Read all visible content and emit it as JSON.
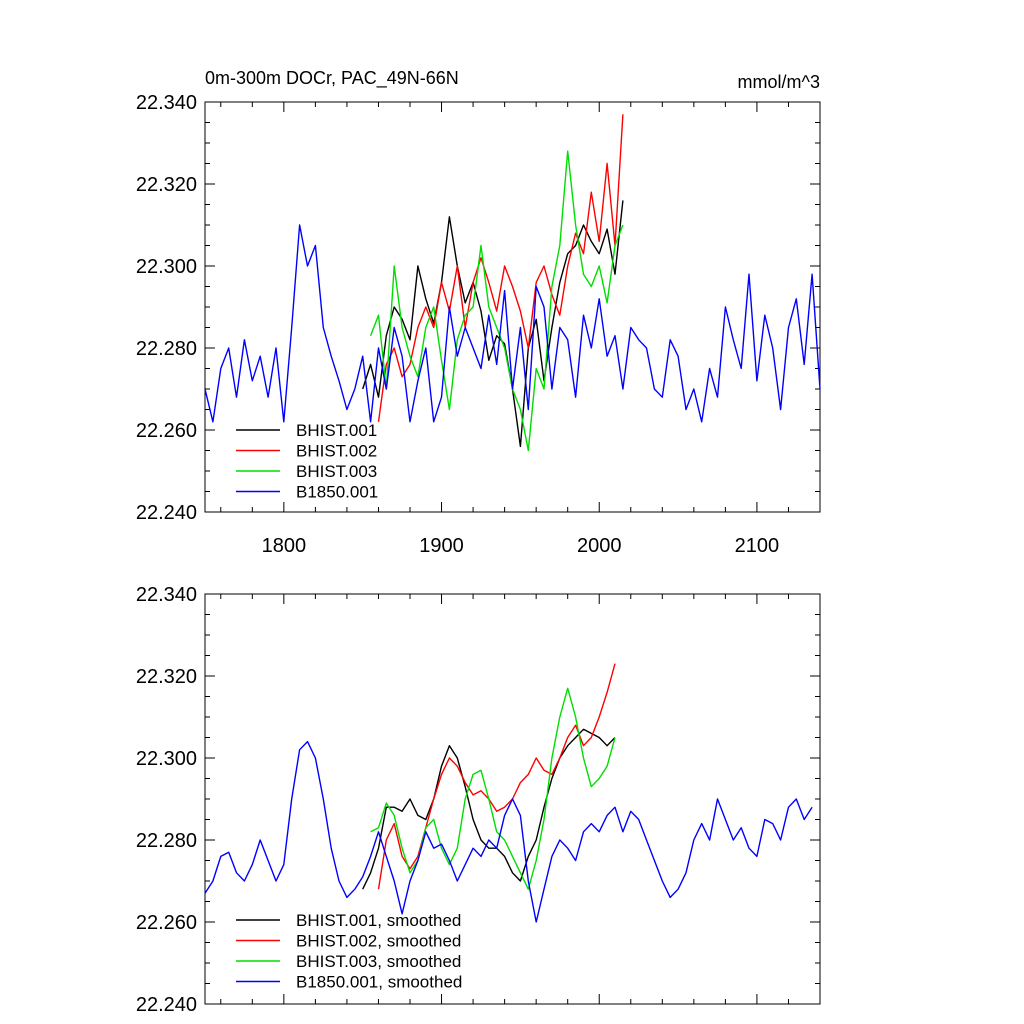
{
  "chart_data": [
    {
      "type": "line",
      "title": "0m-300m DOCr, PAC_49N-66N",
      "units": "mmol/m^3",
      "xlim": [
        1750,
        2140
      ],
      "ylim": [
        22.24,
        22.34
      ],
      "yticks": [
        "22.240",
        "22.260",
        "22.280",
        "22.300",
        "22.320",
        "22.340"
      ],
      "xticks": [
        "1800",
        "1900",
        "2000",
        "2100"
      ],
      "legend_position": "bottom-left",
      "series": [
        {
          "name": "BHIST.001",
          "color": "#000000",
          "x": [
            1850,
            1855,
            1860,
            1865,
            1870,
            1875,
            1880,
            1885,
            1890,
            1895,
            1900,
            1905,
            1910,
            1915,
            1920,
            1925,
            1930,
            1935,
            1940,
            1945,
            1950,
            1955,
            1960,
            1965,
            1970,
            1975,
            1980,
            1985,
            1990,
            1995,
            2000,
            2005,
            2010,
            2015
          ],
          "y": [
            22.27,
            22.276,
            22.268,
            22.283,
            22.29,
            22.287,
            22.282,
            22.3,
            22.292,
            22.286,
            22.296,
            22.312,
            22.3,
            22.291,
            22.296,
            22.289,
            22.277,
            22.283,
            22.281,
            22.27,
            22.256,
            22.28,
            22.287,
            22.272,
            22.285,
            22.296,
            22.303,
            22.305,
            22.31,
            22.306,
            22.303,
            22.309,
            22.298,
            22.316
          ]
        },
        {
          "name": "BHIST.002",
          "color": "#ff0000",
          "x": [
            1860,
            1865,
            1870,
            1875,
            1880,
            1885,
            1890,
            1895,
            1900,
            1905,
            1910,
            1915,
            1920,
            1925,
            1930,
            1935,
            1940,
            1945,
            1950,
            1955,
            1960,
            1965,
            1970,
            1975,
            1980,
            1985,
            1990,
            1995,
            2000,
            2005,
            2010,
            2015
          ],
          "y": [
            22.262,
            22.276,
            22.28,
            22.273,
            22.276,
            22.285,
            22.29,
            22.285,
            22.296,
            22.289,
            22.3,
            22.285,
            22.296,
            22.302,
            22.296,
            22.289,
            22.3,
            22.295,
            22.289,
            22.28,
            22.296,
            22.3,
            22.293,
            22.288,
            22.3,
            22.308,
            22.303,
            22.318,
            22.306,
            22.325,
            22.305,
            22.337
          ]
        },
        {
          "name": "BHIST.003",
          "color": "#00dd00",
          "x": [
            1855,
            1860,
            1865,
            1870,
            1875,
            1880,
            1885,
            1890,
            1895,
            1900,
            1905,
            1910,
            1915,
            1920,
            1925,
            1930,
            1935,
            1940,
            1945,
            1950,
            1955,
            1960,
            1965,
            1970,
            1975,
            1980,
            1985,
            1990,
            1995,
            2000,
            2005,
            2010,
            2015
          ],
          "y": [
            22.283,
            22.288,
            22.27,
            22.3,
            22.285,
            22.278,
            22.273,
            22.285,
            22.29,
            22.277,
            22.265,
            22.282,
            22.288,
            22.29,
            22.305,
            22.29,
            22.285,
            22.28,
            22.27,
            22.265,
            22.255,
            22.275,
            22.27,
            22.295,
            22.305,
            22.328,
            22.31,
            22.298,
            22.295,
            22.3,
            22.291,
            22.305,
            22.31
          ]
        },
        {
          "name": "B1850.001",
          "color": "#0000ff",
          "x": [
            1750,
            1755,
            1760,
            1765,
            1770,
            1775,
            1780,
            1785,
            1790,
            1795,
            1800,
            1805,
            1810,
            1815,
            1820,
            1825,
            1830,
            1835,
            1840,
            1845,
            1850,
            1855,
            1860,
            1865,
            1870,
            1875,
            1880,
            1885,
            1890,
            1895,
            1900,
            1905,
            1910,
            1915,
            1920,
            1925,
            1930,
            1935,
            1940,
            1945,
            1950,
            1955,
            1960,
            1965,
            1970,
            1975,
            1980,
            1985,
            1990,
            1995,
            2000,
            2005,
            2010,
            2015,
            2020,
            2025,
            2030,
            2035,
            2040,
            2045,
            2050,
            2055,
            2060,
            2065,
            2070,
            2075,
            2080,
            2085,
            2090,
            2095,
            2100,
            2105,
            2110,
            2115,
            2120,
            2125,
            2130,
            2135,
            2140
          ],
          "y": [
            22.27,
            22.262,
            22.275,
            22.28,
            22.268,
            22.282,
            22.272,
            22.278,
            22.268,
            22.28,
            22.262,
            22.285,
            22.31,
            22.3,
            22.305,
            22.285,
            22.278,
            22.272,
            22.265,
            22.27,
            22.278,
            22.262,
            22.28,
            22.27,
            22.285,
            22.278,
            22.262,
            22.272,
            22.28,
            22.262,
            22.268,
            22.29,
            22.278,
            22.285,
            22.28,
            22.275,
            22.288,
            22.276,
            22.294,
            22.27,
            22.285,
            22.265,
            22.295,
            22.29,
            22.27,
            22.285,
            22.282,
            22.268,
            22.288,
            22.28,
            22.292,
            22.278,
            22.283,
            22.27,
            22.285,
            22.282,
            22.28,
            22.27,
            22.268,
            22.282,
            22.278,
            22.265,
            22.27,
            22.262,
            22.275,
            22.268,
            22.29,
            22.282,
            22.275,
            22.298,
            22.272,
            22.288,
            22.28,
            22.265,
            22.285,
            22.292,
            22.276,
            22.298,
            22.27
          ]
        }
      ]
    },
    {
      "type": "line",
      "xlim": [
        1750,
        2140
      ],
      "ylim": [
        22.24,
        22.34
      ],
      "yticks": [
        "22.240",
        "22.260",
        "22.280",
        "22.300",
        "22.320",
        "22.340"
      ],
      "xticks": [],
      "legend_position": "bottom-left",
      "series": [
        {
          "name": "BHIST.001, smoothed",
          "color": "#000000",
          "x": [
            1850,
            1855,
            1860,
            1865,
            1870,
            1875,
            1880,
            1885,
            1890,
            1895,
            1900,
            1905,
            1910,
            1915,
            1920,
            1925,
            1930,
            1935,
            1940,
            1945,
            1950,
            1955,
            1960,
            1965,
            1970,
            1975,
            1980,
            1985,
            1990,
            1995,
            2000,
            2005,
            2010
          ],
          "y": [
            22.268,
            22.272,
            22.278,
            22.288,
            22.288,
            22.287,
            22.29,
            22.286,
            22.285,
            22.29,
            22.298,
            22.303,
            22.3,
            22.293,
            22.285,
            22.28,
            22.278,
            22.278,
            22.276,
            22.272,
            22.27,
            22.276,
            22.28,
            22.288,
            22.295,
            22.3,
            22.303,
            22.305,
            22.307,
            22.306,
            22.305,
            22.303,
            22.305
          ]
        },
        {
          "name": "BHIST.002, smoothed",
          "color": "#ff0000",
          "x": [
            1860,
            1865,
            1870,
            1875,
            1880,
            1885,
            1890,
            1895,
            1900,
            1905,
            1910,
            1915,
            1920,
            1925,
            1930,
            1935,
            1940,
            1945,
            1950,
            1955,
            1960,
            1965,
            1970,
            1975,
            1980,
            1985,
            1990,
            1995,
            2000,
            2005,
            2010
          ],
          "y": [
            22.268,
            22.28,
            22.284,
            22.276,
            22.273,
            22.276,
            22.283,
            22.29,
            22.296,
            22.3,
            22.298,
            22.294,
            22.291,
            22.292,
            22.29,
            22.287,
            22.288,
            22.29,
            22.294,
            22.296,
            22.3,
            22.297,
            22.296,
            22.3,
            22.305,
            22.308,
            22.303,
            22.305,
            22.31,
            22.316,
            22.323
          ]
        },
        {
          "name": "BHIST.003, smoothed",
          "color": "#00dd00",
          "x": [
            1855,
            1860,
            1865,
            1870,
            1875,
            1880,
            1885,
            1890,
            1895,
            1900,
            1905,
            1910,
            1915,
            1920,
            1925,
            1930,
            1935,
            1940,
            1945,
            1950,
            1955,
            1960,
            1965,
            1970,
            1975,
            1980,
            1985,
            1990,
            1995,
            2000,
            2005,
            2010
          ],
          "y": [
            22.282,
            22.283,
            22.289,
            22.286,
            22.278,
            22.272,
            22.275,
            22.283,
            22.285,
            22.278,
            22.274,
            22.278,
            22.29,
            22.296,
            22.297,
            22.29,
            22.282,
            22.28,
            22.276,
            22.272,
            22.268,
            22.275,
            22.285,
            22.3,
            22.31,
            22.317,
            22.31,
            22.3,
            22.293,
            22.295,
            22.298,
            22.305
          ]
        },
        {
          "name": "B1850.001, smoothed",
          "color": "#0000ff",
          "x": [
            1750,
            1755,
            1760,
            1765,
            1770,
            1775,
            1780,
            1785,
            1790,
            1795,
            1800,
            1805,
            1810,
            1815,
            1820,
            1825,
            1830,
            1835,
            1840,
            1845,
            1850,
            1855,
            1860,
            1865,
            1870,
            1875,
            1880,
            1885,
            1890,
            1895,
            1900,
            1905,
            1910,
            1915,
            1920,
            1925,
            1930,
            1935,
            1940,
            1945,
            1950,
            1955,
            1960,
            1965,
            1970,
            1975,
            1980,
            1985,
            1990,
            1995,
            2000,
            2005,
            2010,
            2015,
            2020,
            2025,
            2030,
            2035,
            2040,
            2045,
            2050,
            2055,
            2060,
            2065,
            2070,
            2075,
            2080,
            2085,
            2090,
            2095,
            2100,
            2105,
            2110,
            2115,
            2120,
            2125,
            2130,
            2135
          ],
          "y": [
            22.267,
            22.27,
            22.276,
            22.277,
            22.272,
            22.27,
            22.274,
            22.28,
            22.275,
            22.27,
            22.274,
            22.29,
            22.302,
            22.304,
            22.3,
            22.29,
            22.278,
            22.27,
            22.266,
            22.268,
            22.271,
            22.276,
            22.282,
            22.276,
            22.27,
            22.262,
            22.27,
            22.275,
            22.282,
            22.278,
            22.279,
            22.275,
            22.27,
            22.274,
            22.278,
            22.276,
            22.28,
            22.278,
            22.286,
            22.29,
            22.286,
            22.27,
            22.26,
            22.268,
            22.276,
            22.28,
            22.278,
            22.275,
            22.282,
            22.284,
            22.282,
            22.286,
            22.288,
            22.282,
            22.287,
            22.285,
            22.28,
            22.275,
            22.27,
            22.266,
            22.268,
            22.272,
            22.28,
            22.284,
            22.28,
            22.29,
            22.285,
            22.28,
            22.283,
            22.278,
            22.276,
            22.285,
            22.284,
            22.28,
            22.288,
            22.29,
            22.285,
            22.288
          ]
        }
      ]
    }
  ]
}
